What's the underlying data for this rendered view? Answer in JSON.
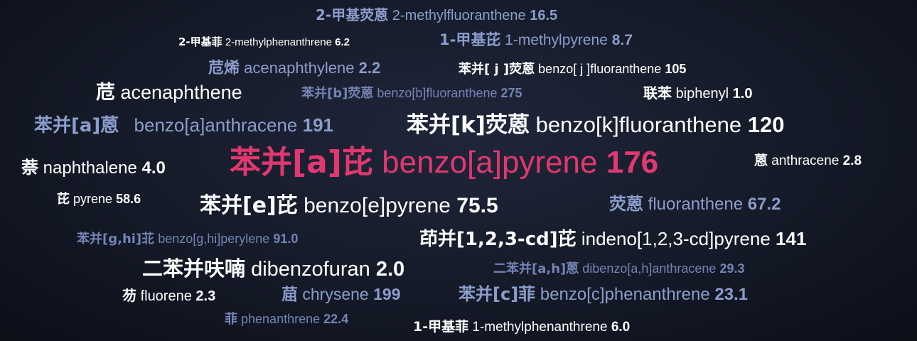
{
  "terms": [
    {
      "zh": "2-甲基荧蒽",
      "en": "2-methylfluoranthene",
      "val": "16.5"
    },
    {
      "zh": "2-甲基菲",
      "en": "2-methylphenanthrene",
      "val": "6.2"
    },
    {
      "zh": "1-甲基芘",
      "en": "1-methylpyrene",
      "val": "8.7"
    },
    {
      "zh": "苊烯",
      "en": "acenaphthylene",
      "val": "2.2"
    },
    {
      "zh": "苯并[ j ]荧蒽",
      "en": "benzo[ j ]fluoranthene",
      "val": "105"
    },
    {
      "zh": "苊",
      "en": "acenaphthene",
      "val": ""
    },
    {
      "zh": "苯并[b]荧蒽",
      "en": "benzo[b]fluoranthene",
      "val": "275"
    },
    {
      "zh": "联苯",
      "en": "biphenyl",
      "val": "1.0"
    },
    {
      "zh": "苯并[a]蒽",
      "en": "benzo[a]anthracene",
      "val": "191"
    },
    {
      "zh": "苯并[k]荧蒽",
      "en": "benzo[k]fluoranthene",
      "val": "120"
    },
    {
      "zh": "萘",
      "en": "naphthalene",
      "val": "4.0"
    },
    {
      "zh": "苯并[a]芘",
      "en": "benzo[a]pyrene",
      "val": "176"
    },
    {
      "zh": "蒽",
      "en": "anthracene",
      "val": "2.8"
    },
    {
      "zh": "芘",
      "en": "pyrene",
      "val": "58.6"
    },
    {
      "zh": "苯并[e]芘",
      "en": "benzo[e]pyrene",
      "val": "75.5"
    },
    {
      "zh": "荧蒽",
      "en": "fluoranthene",
      "val": "67.2"
    },
    {
      "zh": "苯并[g,hi]苝",
      "en": "benzo[g,hi]perylene",
      "val": "91.0"
    },
    {
      "zh": "茚并[1,2,3-cd]芘",
      "en": "indeno[1,2,3-cd]pyrene",
      "val": "141"
    },
    {
      "zh": "二苯并呋喃",
      "en": "dibenzofuran",
      "val": "2.0"
    },
    {
      "zh": "二苯并[a,h]蒽",
      "en": "dibenzo[a,h]anthracene",
      "val": "29.3"
    },
    {
      "zh": "芴",
      "en": "fluorene",
      "val": "2.3"
    },
    {
      "zh": "䓛",
      "en": "chrysene",
      "val": "199"
    },
    {
      "zh": "苯并[c]菲",
      "en": "benzo[c]phenanthrene",
      "val": "23.1"
    },
    {
      "zh": "菲",
      "en": "phenanthrene",
      "val": "22.4"
    },
    {
      "zh": "1-甲基菲",
      "en": "1-methylphenanthrene",
      "val": "6.0"
    }
  ]
}
